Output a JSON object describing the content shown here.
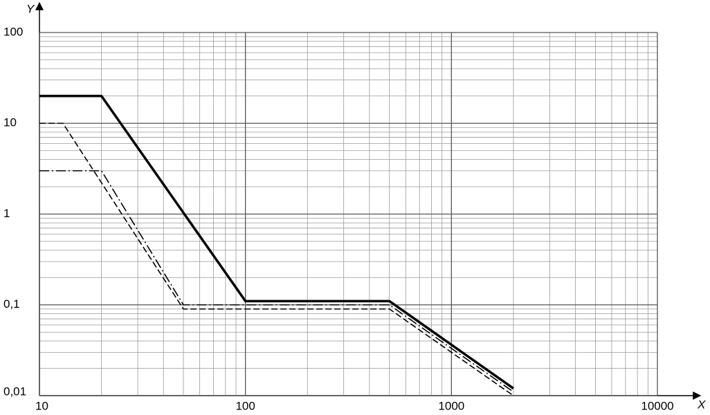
{
  "chart_data": {
    "type": "line",
    "x_label": "X",
    "y_label": "Y",
    "xlog": true,
    "ylog": true,
    "grid": true,
    "minor_grid": true,
    "xlim": [
      10,
      10000
    ],
    "ylim": [
      0.01,
      100
    ],
    "xticks": [
      10,
      100,
      1000,
      10000
    ],
    "yticks": [
      {
        "value": 0.01,
        "label": "0,01"
      },
      {
        "value": 0.1,
        "label": "0,1"
      },
      1,
      10,
      100
    ],
    "series": [
      {
        "color": "#000000",
        "style": "solid",
        "width": 3.5,
        "x": [
          10,
          20,
          100,
          500,
          2000
        ],
        "values": [
          20,
          20,
          0.11,
          0.11,
          0.012
        ]
      },
      {
        "color": "#000000",
        "style": "dashed",
        "width": 1.6,
        "x": [
          10,
          13,
          50,
          500,
          2000
        ],
        "values": [
          10,
          10,
          0.09,
          0.09,
          0.01
        ]
      },
      {
        "color": "#000000",
        "style": "dashdot",
        "width": 1.6,
        "x": [
          10,
          20,
          50,
          500,
          2000
        ],
        "values": [
          3,
          3,
          0.1,
          0.1,
          0.011
        ]
      }
    ]
  }
}
